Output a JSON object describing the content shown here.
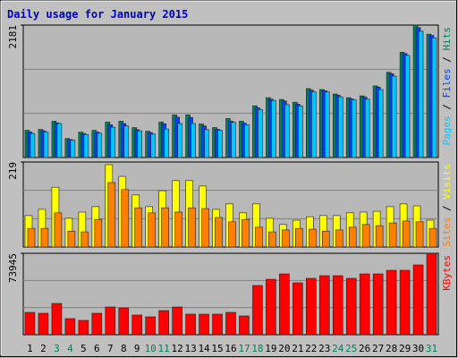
{
  "title": "Daily usage for January 2015",
  "legend_separator": " / ",
  "categories": [
    "1",
    "2",
    "3",
    "4",
    "5",
    "6",
    "7",
    "8",
    "9",
    "10",
    "11",
    "12",
    "13",
    "14",
    "15",
    "16",
    "17",
    "18",
    "19",
    "20",
    "21",
    "22",
    "23",
    "24",
    "25",
    "26",
    "27",
    "28",
    "29",
    "30",
    "31"
  ],
  "category_colors": [
    "#000000",
    "#000000",
    "#00805c",
    "#00805c",
    "#000000",
    "#000000",
    "#000000",
    "#000000",
    "#000000",
    "#00805c",
    "#00805c",
    "#000000",
    "#000000",
    "#000000",
    "#000000",
    "#000000",
    "#00805c",
    "#00805c",
    "#000000",
    "#000000",
    "#000000",
    "#000000",
    "#000000",
    "#00805c",
    "#00805c",
    "#000000",
    "#000000",
    "#000000",
    "#000000",
    "#000000",
    "#00805c"
  ],
  "chart_data": [
    {
      "type": "bar",
      "ylim": [
        0,
        2181
      ],
      "yticks": [
        2181
      ],
      "series": [
        {
          "name": "Hits",
          "color": "#00805c",
          "values": [
            448,
            463,
            598,
            314,
            418,
            448,
            583,
            598,
            493,
            433,
            583,
            702,
            702,
            553,
            493,
            642,
            598,
            851,
            986,
            956,
            911,
            1135,
            1120,
            1046,
            986,
            1016,
            1180,
            1404,
            1733,
            2181,
            2032
          ]
        },
        {
          "name": "Files",
          "color": "#0040ff",
          "values": [
            420,
            440,
            570,
            295,
            395,
            420,
            540,
            560,
            460,
            410,
            555,
            665,
            660,
            520,
            465,
            600,
            565,
            820,
            960,
            930,
            880,
            1110,
            1100,
            1025,
            965,
            995,
            1160,
            1380,
            1710,
            2140,
            2010
          ]
        },
        {
          "name": "Pages",
          "color": "#00c8ff",
          "values": [
            395,
            420,
            560,
            285,
            380,
            400,
            500,
            520,
            440,
            385,
            470,
            560,
            560,
            460,
            450,
            580,
            540,
            790,
            940,
            870,
            850,
            1080,
            1080,
            1000,
            950,
            960,
            1120,
            1340,
            1680,
            2080,
            1970
          ]
        }
      ]
    },
    {
      "type": "bar",
      "ylim": [
        0,
        219
      ],
      "yticks": [
        219
      ],
      "series": [
        {
          "name": "Visits",
          "color": "#ffff00",
          "values": [
            81,
            97,
            154,
            74,
            90,
            104,
            212,
            182,
            134,
            104,
            145,
            171,
            171,
            157,
            97,
            111,
            88,
            111,
            74,
            58,
            69,
            78,
            81,
            81,
            88,
            90,
            92,
            104,
            111,
            106,
            69
          ]
        },
        {
          "name": "Sites",
          "color": "#ff8000",
          "values": [
            48,
            48,
            88,
            41,
            39,
            71,
            166,
            148,
            101,
            88,
            101,
            90,
            101,
            99,
            76,
            65,
            71,
            51,
            39,
            44,
            48,
            46,
            41,
            44,
            51,
            58,
            55,
            62,
            67,
            65,
            48
          ]
        }
      ]
    },
    {
      "type": "bar",
      "ylim": [
        0,
        73945
      ],
      "yticks": [
        73945
      ],
      "series": [
        {
          "name": "KBytes",
          "color": "#ff0000",
          "values": [
            20314,
            19500,
            28438,
            14626,
            13000,
            19500,
            25190,
            24377,
            17876,
            16250,
            21939,
            25190,
            18688,
            18688,
            18688,
            20314,
            17063,
            44690,
            50379,
            55254,
            47127,
            51190,
            53628,
            53628,
            51190,
            55254,
            55254,
            58505,
            58505,
            63380,
            73945
          ]
        }
      ]
    }
  ]
}
